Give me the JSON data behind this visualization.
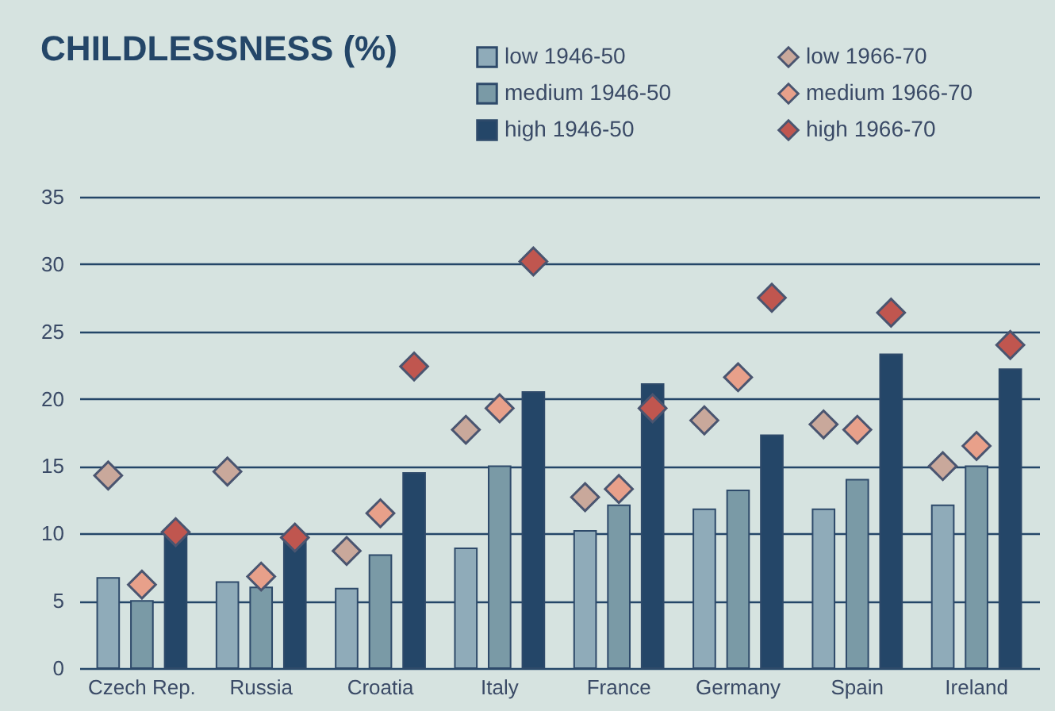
{
  "chart_data": {
    "type": "bar",
    "title": "CHILDLESSNESS (%)",
    "categories": [
      "Czech Rep.",
      "Russia",
      "Croatia",
      "Italy",
      "France",
      "Germany",
      "Spain",
      "Ireland"
    ],
    "series": [
      {
        "name": "low 1946-50",
        "color": "#8fabb9",
        "values": [
          6.7,
          6.4,
          5.9,
          8.9,
          10.2,
          11.8,
          11.8,
          12.1
        ]
      },
      {
        "name": "medium 1946-50",
        "color": "#7a9aa6",
        "values": [
          5.0,
          6.0,
          8.4,
          15.0,
          12.1,
          13.2,
          14.0,
          15.0
        ]
      },
      {
        "name": "high 1946-50",
        "color": "#244668",
        "values": [
          10.0,
          9.6,
          14.5,
          20.5,
          21.1,
          17.3,
          23.3,
          22.2
        ]
      },
      {
        "name": "low 1966-70",
        "type": "scatter",
        "marker": "diamond",
        "color": "#c9a89b",
        "values": [
          14.3,
          14.6,
          8.7,
          17.7,
          12.7,
          18.4,
          18.1,
          15.0
        ]
      },
      {
        "name": "medium 1966-70",
        "type": "scatter",
        "marker": "diamond",
        "color": "#e8a08a",
        "values": [
          6.2,
          6.8,
          11.5,
          19.3,
          13.3,
          21.6,
          17.7,
          16.5
        ]
      },
      {
        "name": "high 1966-70",
        "type": "scatter",
        "marker": "diamond",
        "color": "#c0564f",
        "values": [
          10.1,
          9.7,
          22.4,
          30.2,
          19.3,
          27.5,
          26.4,
          24.0
        ]
      }
    ],
    "ylim": [
      0,
      35
    ],
    "yticks": [
      0,
      5,
      10,
      15,
      20,
      25,
      30,
      35
    ],
    "grid": "y",
    "legend": "top"
  }
}
